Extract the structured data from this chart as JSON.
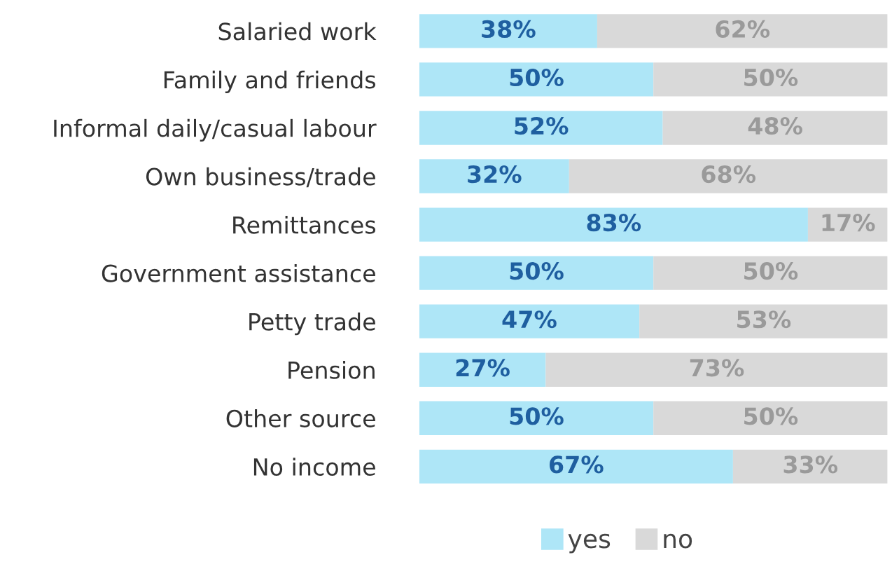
{
  "chart_data": {
    "type": "bar",
    "orientation": "horizontal",
    "stacked": true,
    "categories": [
      "Salaried work",
      "Family and friends",
      "Informal daily/casual labour",
      "Own business/trade",
      "Remittances",
      "Government assistance",
      "Petty trade",
      "Pension",
      "Other source",
      "No income"
    ],
    "series": [
      {
        "name": "yes",
        "color": "#aee6f7",
        "values": [
          38,
          50,
          52,
          32,
          83,
          50,
          47,
          27,
          50,
          67
        ],
        "value_labels": [
          "38%",
          "50%",
          "52%",
          "32%",
          "83%",
          "50%",
          "47%",
          "27%",
          "50%",
          "67%"
        ]
      },
      {
        "name": "no",
        "color": "#d9d9d9",
        "values": [
          62,
          50,
          48,
          68,
          17,
          50,
          53,
          73,
          50,
          33
        ],
        "value_labels": [
          "62%",
          "50%",
          "48%",
          "68%",
          "17%",
          "50%",
          "53%",
          "73%",
          "50%",
          "33%"
        ]
      }
    ],
    "xlim": [
      0,
      100
    ],
    "tick_labels": "y",
    "grid": false,
    "legend": "bottom"
  }
}
